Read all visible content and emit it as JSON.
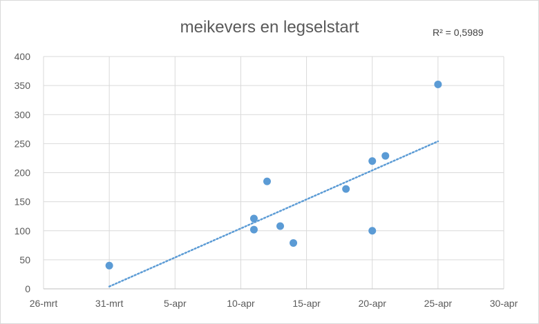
{
  "chart_data": {
    "type": "scatter",
    "title": "meikevers en legselstart",
    "xlabel": "",
    "ylabel": "",
    "x_axis": {
      "type": "date",
      "min": "2000-03-26",
      "max": "2000-04-30",
      "tick_labels": [
        "26-mrt",
        "31-mrt",
        "5-apr",
        "10-apr",
        "15-apr",
        "20-apr",
        "25-apr",
        "30-apr"
      ],
      "tick_dates": [
        "2000-03-26",
        "2000-03-31",
        "2000-04-05",
        "2000-04-10",
        "2000-04-15",
        "2000-04-20",
        "2000-04-25",
        "2000-04-30"
      ]
    },
    "y_axis": {
      "min": 0,
      "max": 400,
      "ticks": [
        0,
        50,
        100,
        150,
        200,
        250,
        300,
        350,
        400
      ]
    },
    "grid": true,
    "series": [
      {
        "color": "#5b9bd5",
        "points": [
          {
            "x": "2000-03-31",
            "y": 40
          },
          {
            "x": "2000-04-11",
            "y": 121
          },
          {
            "x": "2000-04-11",
            "y": 102
          },
          {
            "x": "2000-04-12",
            "y": 185
          },
          {
            "x": "2000-04-13",
            "y": 108
          },
          {
            "x": "2000-04-14",
            "y": 79
          },
          {
            "x": "2000-04-18",
            "y": 172
          },
          {
            "x": "2000-04-20",
            "y": 220
          },
          {
            "x": "2000-04-20",
            "y": 100
          },
          {
            "x": "2000-04-21",
            "y": 229
          },
          {
            "x": "2000-04-25",
            "y": 352
          }
        ]
      }
    ],
    "trendline": {
      "type": "linear",
      "style": "dotted",
      "color": "#5b9bd5",
      "from": {
        "x": "2000-03-31",
        "y": 4
      },
      "to": {
        "x": "2000-04-25",
        "y": 254
      },
      "r_squared_label": "R² = 0,5989"
    }
  }
}
